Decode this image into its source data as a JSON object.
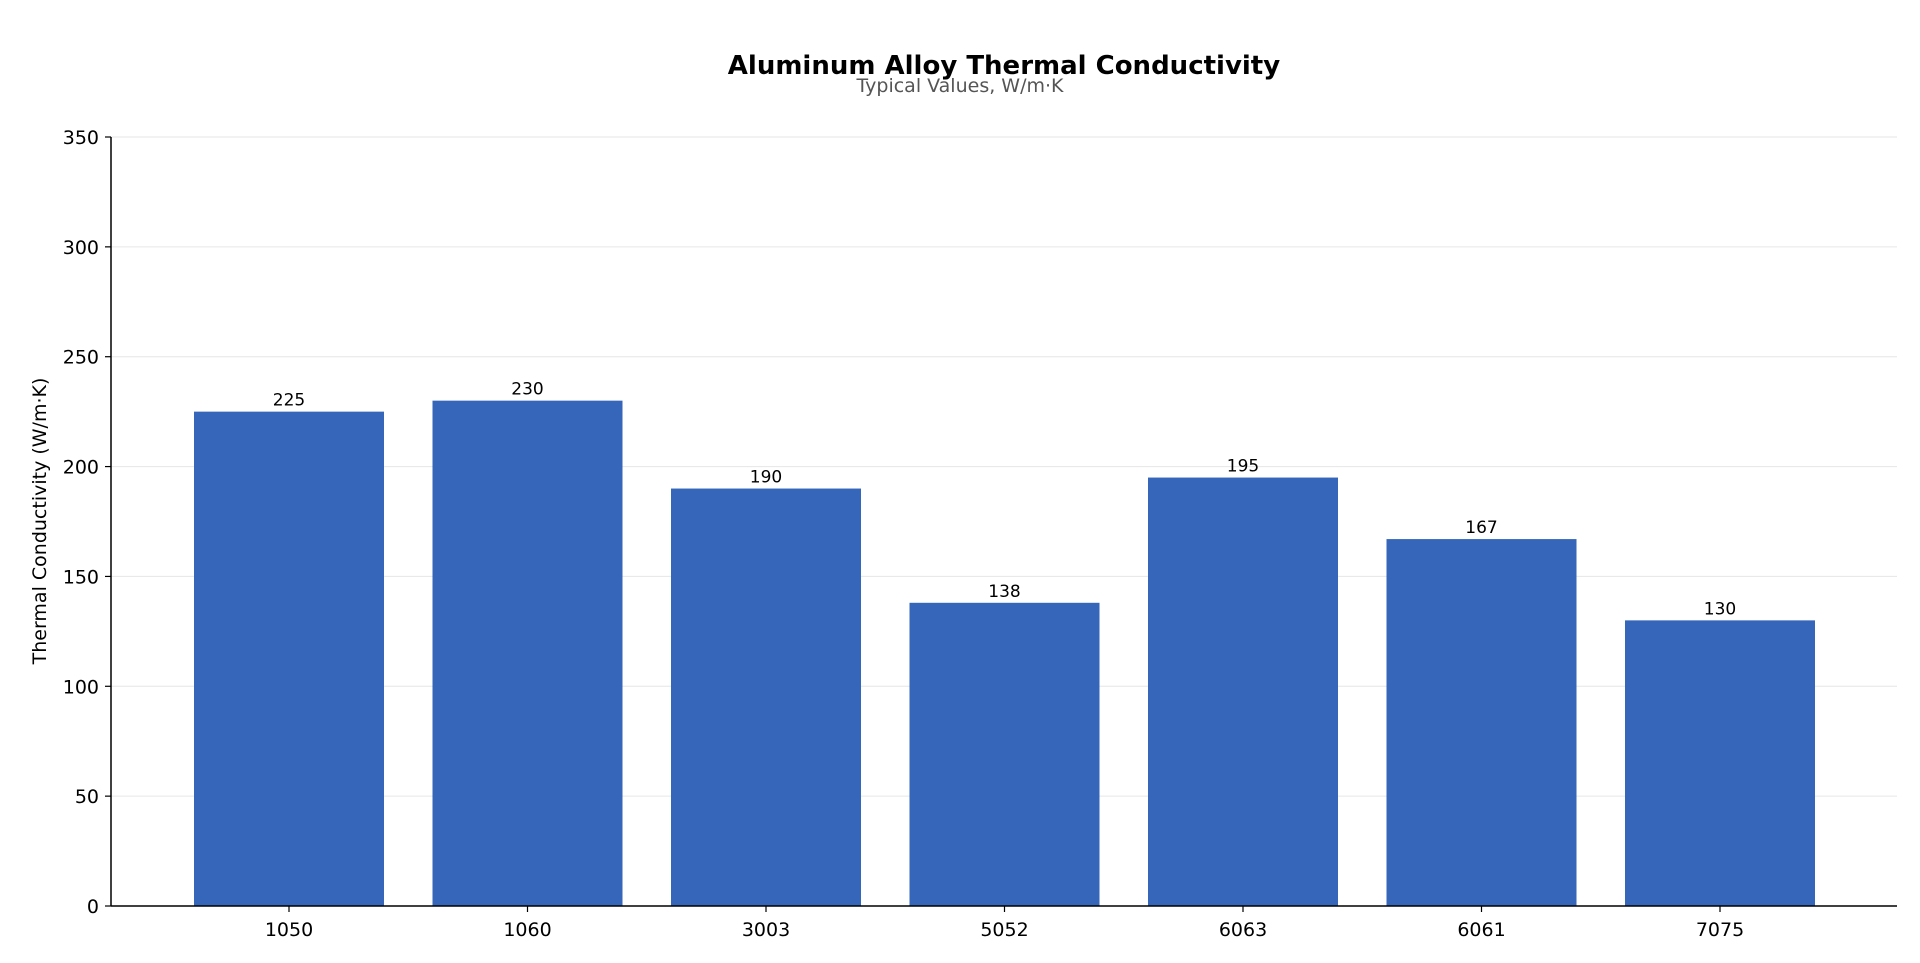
{
  "chart_data": {
    "type": "bar",
    "title": "Aluminum Alloy Thermal Conductivity",
    "subtitle": "Typical Values, W/m·K",
    "xlabel": "",
    "ylabel": "Thermal Conductivity (W/m·K)",
    "categories": [
      "1050",
      "1060",
      "3003",
      "5052",
      "6063",
      "6061",
      "7075"
    ],
    "values": [
      225,
      230,
      190,
      138,
      195,
      167,
      130
    ],
    "data_labels": [
      "225",
      "230",
      "190",
      "138",
      "195",
      "167",
      "130"
    ],
    "ylim": [
      0,
      350
    ],
    "yticks": [
      0,
      50,
      100,
      150,
      200,
      250,
      300,
      350
    ],
    "ytick_labels": [
      "0",
      "50",
      "100",
      "150",
      "200",
      "250",
      "300",
      "350"
    ],
    "grid": true,
    "legend": "none",
    "colors": {
      "bar": "#3566ba",
      "grid": "#e6e6e6",
      "axis": "#000000",
      "text": "#000000",
      "subtitle": "#555555"
    }
  }
}
